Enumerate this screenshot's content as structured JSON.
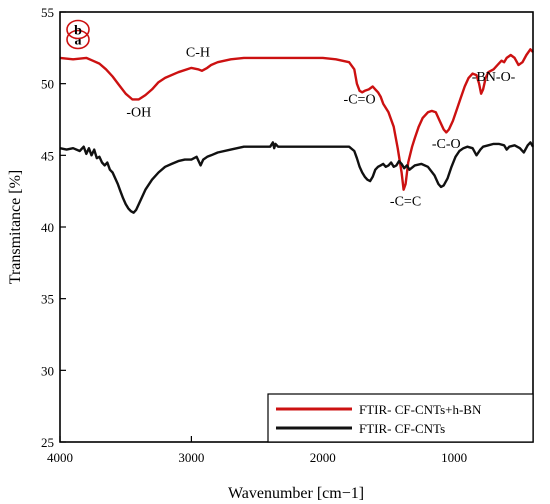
{
  "chart_data": {
    "type": "line",
    "xlabel": "Wavenumber [cm−1]",
    "ylabel": "Transmitance [%]",
    "xlim": [
      4000,
      400
    ],
    "ylim": [
      25,
      55
    ],
    "x_reversed": true,
    "grid": false,
    "legend_position": "bottom-right",
    "x_ticks": [
      4000,
      3000,
      2000,
      1000
    ],
    "y_ticks": [
      25,
      30,
      35,
      40,
      45,
      50,
      55
    ],
    "series": [
      {
        "name": "FTIR- CF-CNTs+h-BN",
        "panel_label": "a",
        "color": "#cc1111",
        "points": [
          [
            4000,
            51.8
          ],
          [
            3900,
            51.7
          ],
          [
            3800,
            51.8
          ],
          [
            3750,
            51.6
          ],
          [
            3700,
            51.4
          ],
          [
            3650,
            51.0
          ],
          [
            3600,
            50.5
          ],
          [
            3550,
            49.9
          ],
          [
            3500,
            49.3
          ],
          [
            3450,
            48.9
          ],
          [
            3400,
            48.9
          ],
          [
            3350,
            49.2
          ],
          [
            3300,
            49.6
          ],
          [
            3250,
            50.1
          ],
          [
            3200,
            50.4
          ],
          [
            3100,
            50.8
          ],
          [
            3000,
            51.1
          ],
          [
            2950,
            51.0
          ],
          [
            2920,
            50.9
          ],
          [
            2880,
            51.1
          ],
          [
            2850,
            51.3
          ],
          [
            2800,
            51.5
          ],
          [
            2700,
            51.7
          ],
          [
            2600,
            51.8
          ],
          [
            2400,
            51.8
          ],
          [
            2200,
            51.8
          ],
          [
            2000,
            51.8
          ],
          [
            1900,
            51.7
          ],
          [
            1800,
            51.5
          ],
          [
            1760,
            51.0
          ],
          [
            1740,
            50.0
          ],
          [
            1720,
            49.5
          ],
          [
            1700,
            49.4
          ],
          [
            1680,
            49.5
          ],
          [
            1650,
            49.6
          ],
          [
            1620,
            49.8
          ],
          [
            1600,
            49.6
          ],
          [
            1580,
            49.4
          ],
          [
            1560,
            49.1
          ],
          [
            1540,
            48.6
          ],
          [
            1500,
            48.0
          ],
          [
            1460,
            47.0
          ],
          [
            1430,
            45.5
          ],
          [
            1400,
            43.8
          ],
          [
            1385,
            42.6
          ],
          [
            1370,
            43.0
          ],
          [
            1350,
            44.5
          ],
          [
            1320,
            45.6
          ],
          [
            1300,
            46.2
          ],
          [
            1270,
            47.0
          ],
          [
            1240,
            47.6
          ],
          [
            1200,
            48.0
          ],
          [
            1170,
            48.1
          ],
          [
            1140,
            48.0
          ],
          [
            1110,
            47.4
          ],
          [
            1080,
            46.8
          ],
          [
            1060,
            46.6
          ],
          [
            1040,
            46.8
          ],
          [
            1010,
            47.4
          ],
          [
            980,
            48.2
          ],
          [
            950,
            49.0
          ],
          [
            920,
            49.8
          ],
          [
            890,
            50.4
          ],
          [
            860,
            50.7
          ],
          [
            830,
            50.6
          ],
          [
            810,
            50.0
          ],
          [
            795,
            49.3
          ],
          [
            780,
            49.6
          ],
          [
            760,
            50.4
          ],
          [
            740,
            50.8
          ],
          [
            700,
            51.0
          ],
          [
            670,
            51.3
          ],
          [
            640,
            51.6
          ],
          [
            620,
            51.5
          ],
          [
            600,
            51.8
          ],
          [
            570,
            52.0
          ],
          [
            540,
            51.8
          ],
          [
            510,
            51.3
          ],
          [
            480,
            51.5
          ],
          [
            450,
            52.0
          ],
          [
            420,
            52.4
          ],
          [
            400,
            52.2
          ]
        ]
      },
      {
        "name": "FTIR- CF-CNTs",
        "panel_label": "b",
        "color": "#111111",
        "points": [
          [
            4000,
            45.5
          ],
          [
            3950,
            45.4
          ],
          [
            3900,
            45.5
          ],
          [
            3850,
            45.3
          ],
          [
            3820,
            45.6
          ],
          [
            3800,
            45.1
          ],
          [
            3780,
            45.5
          ],
          [
            3760,
            45.0
          ],
          [
            3740,
            45.4
          ],
          [
            3720,
            44.8
          ],
          [
            3700,
            44.9
          ],
          [
            3680,
            44.5
          ],
          [
            3660,
            44.3
          ],
          [
            3640,
            44.5
          ],
          [
            3620,
            44.0
          ],
          [
            3600,
            43.8
          ],
          [
            3580,
            43.4
          ],
          [
            3560,
            43.0
          ],
          [
            3540,
            42.5
          ],
          [
            3520,
            42.0
          ],
          [
            3500,
            41.6
          ],
          [
            3480,
            41.3
          ],
          [
            3460,
            41.1
          ],
          [
            3440,
            41.0
          ],
          [
            3420,
            41.2
          ],
          [
            3400,
            41.6
          ],
          [
            3380,
            42.0
          ],
          [
            3350,
            42.6
          ],
          [
            3300,
            43.3
          ],
          [
            3250,
            43.8
          ],
          [
            3200,
            44.2
          ],
          [
            3150,
            44.4
          ],
          [
            3100,
            44.6
          ],
          [
            3050,
            44.7
          ],
          [
            3000,
            44.7
          ],
          [
            2960,
            44.9
          ],
          [
            2930,
            44.3
          ],
          [
            2910,
            44.7
          ],
          [
            2880,
            44.9
          ],
          [
            2850,
            45.0
          ],
          [
            2800,
            45.2
          ],
          [
            2700,
            45.4
          ],
          [
            2600,
            45.6
          ],
          [
            2500,
            45.6
          ],
          [
            2400,
            45.6
          ],
          [
            2380,
            45.9
          ],
          [
            2370,
            45.5
          ],
          [
            2360,
            45.8
          ],
          [
            2340,
            45.6
          ],
          [
            2200,
            45.6
          ],
          [
            2000,
            45.6
          ],
          [
            1900,
            45.6
          ],
          [
            1800,
            45.6
          ],
          [
            1760,
            45.3
          ],
          [
            1740,
            44.8
          ],
          [
            1720,
            44.2
          ],
          [
            1700,
            43.8
          ],
          [
            1680,
            43.5
          ],
          [
            1660,
            43.3
          ],
          [
            1640,
            43.2
          ],
          [
            1620,
            43.5
          ],
          [
            1600,
            44.0
          ],
          [
            1580,
            44.2
          ],
          [
            1560,
            44.3
          ],
          [
            1540,
            44.4
          ],
          [
            1520,
            44.2
          ],
          [
            1500,
            44.3
          ],
          [
            1480,
            44.5
          ],
          [
            1460,
            44.2
          ],
          [
            1440,
            44.3
          ],
          [
            1420,
            44.6
          ],
          [
            1400,
            44.4
          ],
          [
            1380,
            44.1
          ],
          [
            1360,
            44.3
          ],
          [
            1340,
            44.0
          ],
          [
            1300,
            44.3
          ],
          [
            1250,
            44.4
          ],
          [
            1200,
            44.2
          ],
          [
            1150,
            43.6
          ],
          [
            1120,
            43.0
          ],
          [
            1100,
            42.8
          ],
          [
            1080,
            42.9
          ],
          [
            1050,
            43.4
          ],
          [
            1020,
            44.2
          ],
          [
            990,
            44.9
          ],
          [
            960,
            45.3
          ],
          [
            930,
            45.5
          ],
          [
            900,
            45.6
          ],
          [
            860,
            45.5
          ],
          [
            830,
            45.0
          ],
          [
            800,
            45.4
          ],
          [
            780,
            45.6
          ],
          [
            740,
            45.7
          ],
          [
            700,
            45.8
          ],
          [
            660,
            45.8
          ],
          [
            620,
            45.7
          ],
          [
            600,
            45.4
          ],
          [
            580,
            45.6
          ],
          [
            540,
            45.7
          ],
          [
            500,
            45.5
          ],
          [
            470,
            45.2
          ],
          [
            440,
            45.7
          ],
          [
            420,
            45.9
          ],
          [
            400,
            45.6
          ]
        ]
      }
    ],
    "annotations": [
      {
        "text": "-OH",
        "wavenumber": 3400,
        "value": 47.7
      },
      {
        "text": "C-H",
        "wavenumber": 2950,
        "value": 51.9
      },
      {
        "text": "-C=O",
        "wavenumber": 1720,
        "value": 48.6
      },
      {
        "text": "-C-O",
        "wavenumber": 1060,
        "value": 45.5
      },
      {
        "text": "-BN-O-",
        "wavenumber": 700,
        "value": 50.2
      },
      {
        "text": "-C=C",
        "wavenumber": 1370,
        "value": 41.5
      }
    ]
  }
}
